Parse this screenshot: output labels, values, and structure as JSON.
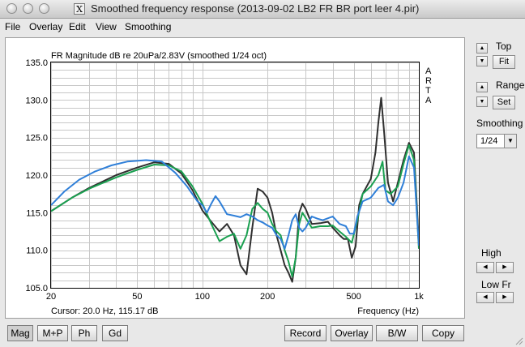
{
  "window": {
    "title": "Smoothed frequency response (2013-09-02 LB2 FR BR port leer 4.pir)",
    "x_icon": "X"
  },
  "menu": [
    "File",
    "Overlay",
    "Edit",
    "View",
    "Smoothing"
  ],
  "plot": {
    "heading": "FR Magnitude dB re 20uPa/2.83V (smoothed 1/24 oct)",
    "arta": [
      "A",
      "R",
      "T",
      "A"
    ],
    "cursor": "Cursor: 20.0 Hz, 115.17 dB",
    "xlabel": "Frequency (Hz)"
  },
  "chart_data": {
    "type": "line",
    "title": "FR Magnitude dB re 20uPa/2.83V (smoothed 1/24 oct)",
    "xlabel": "Frequency (Hz)",
    "ylabel": "",
    "x_scale": "log",
    "xlim": [
      20,
      1000
    ],
    "ylim": [
      105,
      135
    ],
    "x_ticks": [
      {
        "v": 20,
        "label": "20"
      },
      {
        "v": 50,
        "label": "50"
      },
      {
        "v": 100,
        "label": "100"
      },
      {
        "v": 200,
        "label": "200"
      },
      {
        "v": 500,
        "label": "500"
      },
      {
        "v": 1000,
        "label": "1k"
      }
    ],
    "y_ticks": [
      {
        "v": 135,
        "label": "135.0"
      },
      {
        "v": 130,
        "label": "130.0"
      },
      {
        "v": 125,
        "label": "125.0"
      },
      {
        "v": 120,
        "label": "120.0"
      },
      {
        "v": 115,
        "label": "115.0"
      },
      {
        "v": 110,
        "label": "110.0"
      },
      {
        "v": 105,
        "label": "105.0"
      }
    ],
    "grid": true,
    "series": [
      {
        "color": "#2f2f2f",
        "points": [
          [
            20,
            115.2
          ],
          [
            25,
            117
          ],
          [
            30,
            118.3
          ],
          [
            40,
            120
          ],
          [
            50,
            121
          ],
          [
            60,
            121.7
          ],
          [
            70,
            121.5
          ],
          [
            80,
            120.2
          ],
          [
            90,
            118
          ],
          [
            100,
            115.3
          ],
          [
            110,
            113.8
          ],
          [
            120,
            112.5
          ],
          [
            130,
            113.5
          ],
          [
            140,
            112
          ],
          [
            150,
            108
          ],
          [
            160,
            106.8
          ],
          [
            170,
            113
          ],
          [
            180,
            118.2
          ],
          [
            190,
            117.8
          ],
          [
            200,
            117
          ],
          [
            210,
            115
          ],
          [
            220,
            112
          ],
          [
            230,
            110
          ],
          [
            240,
            108
          ],
          [
            250,
            107
          ],
          [
            260,
            105.8
          ],
          [
            270,
            109
          ],
          [
            280,
            115
          ],
          [
            290,
            116.2
          ],
          [
            300,
            115.5
          ],
          [
            320,
            113.5
          ],
          [
            350,
            113.6
          ],
          [
            380,
            113.8
          ],
          [
            400,
            113
          ],
          [
            430,
            112
          ],
          [
            450,
            111.5
          ],
          [
            470,
            111.5
          ],
          [
            490,
            109
          ],
          [
            510,
            110.5
          ],
          [
            530,
            116
          ],
          [
            550,
            117.5
          ],
          [
            600,
            119.5
          ],
          [
            630,
            123
          ],
          [
            650,
            127
          ],
          [
            670,
            130.3
          ],
          [
            690,
            126
          ],
          [
            720,
            119
          ],
          [
            760,
            116.5
          ],
          [
            800,
            119
          ],
          [
            850,
            122
          ],
          [
            900,
            124.3
          ],
          [
            950,
            123
          ],
          [
            1000,
            111
          ]
        ]
      },
      {
        "color": "#1aa050",
        "points": [
          [
            20,
            115.2
          ],
          [
            25,
            117
          ],
          [
            30,
            118.2
          ],
          [
            40,
            119.7
          ],
          [
            50,
            120.7
          ],
          [
            60,
            121.4
          ],
          [
            70,
            121.3
          ],
          [
            80,
            120.5
          ],
          [
            90,
            118.5
          ],
          [
            100,
            116.2
          ],
          [
            110,
            113.5
          ],
          [
            120,
            111.2
          ],
          [
            130,
            111.8
          ],
          [
            140,
            112.2
          ],
          [
            150,
            110.2
          ],
          [
            160,
            112
          ],
          [
            170,
            115.5
          ],
          [
            180,
            116.3
          ],
          [
            190,
            115.5
          ],
          [
            200,
            115
          ],
          [
            210,
            113.5
          ],
          [
            220,
            112.5
          ],
          [
            230,
            112
          ],
          [
            240,
            110
          ],
          [
            250,
            108.5
          ],
          [
            260,
            106.5
          ],
          [
            270,
            109
          ],
          [
            280,
            113.5
          ],
          [
            290,
            115
          ],
          [
            300,
            114.3
          ],
          [
            320,
            113
          ],
          [
            350,
            113.2
          ],
          [
            380,
            113.2
          ],
          [
            400,
            113.3
          ],
          [
            430,
            112.5
          ],
          [
            460,
            111.8
          ],
          [
            490,
            111
          ],
          [
            520,
            114
          ],
          [
            550,
            117.5
          ],
          [
            600,
            118.5
          ],
          [
            650,
            120
          ],
          [
            680,
            121.8
          ],
          [
            700,
            118
          ],
          [
            740,
            117.5
          ],
          [
            800,
            118.5
          ],
          [
            850,
            121.5
          ],
          [
            900,
            124
          ],
          [
            950,
            122
          ],
          [
            1000,
            110.2
          ]
        ]
      },
      {
        "color": "#2f7fd8",
        "points": [
          [
            20,
            116
          ],
          [
            23,
            117.8
          ],
          [
            27,
            119.4
          ],
          [
            32,
            120.5
          ],
          [
            38,
            121.3
          ],
          [
            45,
            121.8
          ],
          [
            55,
            122
          ],
          [
            65,
            121.8
          ],
          [
            75,
            120.3
          ],
          [
            85,
            118.5
          ],
          [
            95,
            116.5
          ],
          [
            100,
            116
          ],
          [
            105,
            115
          ],
          [
            110,
            116.2
          ],
          [
            115,
            117.2
          ],
          [
            120,
            116.5
          ],
          [
            130,
            114.8
          ],
          [
            140,
            114.6
          ],
          [
            150,
            114.4
          ],
          [
            160,
            114.8
          ],
          [
            170,
            114.5
          ],
          [
            180,
            114
          ],
          [
            190,
            113.7
          ],
          [
            200,
            113.3
          ],
          [
            210,
            113
          ],
          [
            220,
            112
          ],
          [
            230,
            111.5
          ],
          [
            240,
            110.2
          ],
          [
            250,
            112
          ],
          [
            260,
            114
          ],
          [
            270,
            114.8
          ],
          [
            280,
            113
          ],
          [
            290,
            112.5
          ],
          [
            300,
            113
          ],
          [
            320,
            114.5
          ],
          [
            340,
            114.2
          ],
          [
            360,
            114
          ],
          [
            400,
            114.5
          ],
          [
            430,
            113.5
          ],
          [
            460,
            113.2
          ],
          [
            480,
            112.2
          ],
          [
            500,
            112.2
          ],
          [
            520,
            114.5
          ],
          [
            550,
            116.5
          ],
          [
            600,
            117
          ],
          [
            650,
            118.3
          ],
          [
            690,
            118.7
          ],
          [
            720,
            116.5
          ],
          [
            760,
            116
          ],
          [
            800,
            117
          ],
          [
            850,
            119
          ],
          [
            900,
            122.5
          ],
          [
            950,
            121
          ],
          [
            1000,
            110.6
          ]
        ]
      }
    ]
  },
  "side": {
    "top_label": "Top",
    "fit_label": "Fit",
    "range_label": "Range",
    "set_label": "Set",
    "smoothing_label": "Smoothing",
    "smoothing_value": "1/24",
    "high_label": "High",
    "lowfr_label": "Low Fr"
  },
  "buttons": {
    "mag": "Mag",
    "mp": "M+P",
    "ph": "Ph",
    "gd": "Gd",
    "record": "Record",
    "overlay": "Overlay",
    "bw": "B/W",
    "copy": "Copy"
  }
}
